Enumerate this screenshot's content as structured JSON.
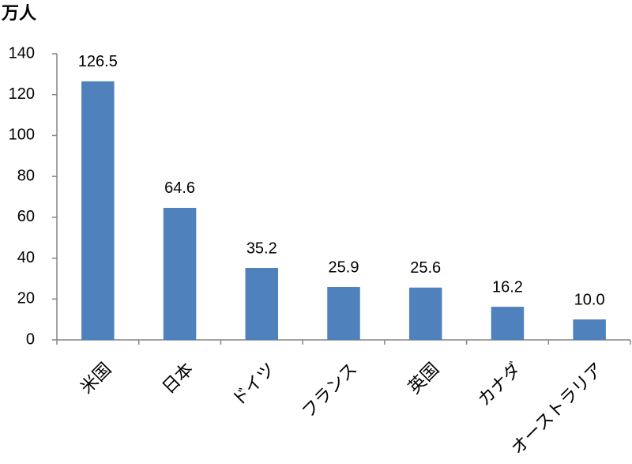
{
  "chart_data": {
    "type": "bar",
    "y_label": "万人",
    "categories": [
      "米国",
      "日本",
      "ドイツ",
      "フランス",
      "英国",
      "カナダ",
      "オーストラリア"
    ],
    "values": [
      126.5,
      64.6,
      35.2,
      25.9,
      25.6,
      16.2,
      10.0
    ],
    "value_labels": [
      "126.5",
      "64.6",
      "35.2",
      "25.9",
      "25.6",
      "16.2",
      "10.0"
    ],
    "color": "#4f81bd",
    "ylim": [
      0,
      140
    ],
    "yticks": [
      0,
      20,
      40,
      60,
      80,
      100,
      120,
      140
    ],
    "grid": false
  }
}
